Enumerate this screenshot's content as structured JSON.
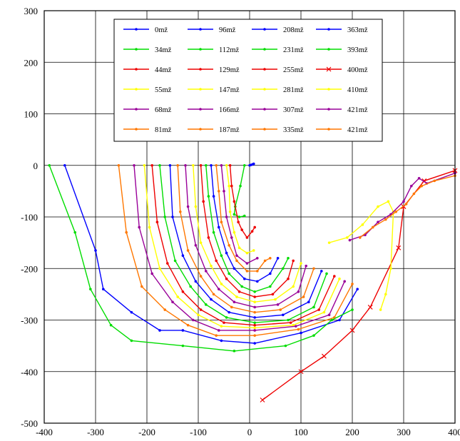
{
  "chart_data": {
    "type": "line",
    "xlim": [
      -400,
      400
    ],
    "ylim": [
      -500,
      300
    ],
    "x_ticks": [
      -400,
      -300,
      -200,
      -100,
      0,
      100,
      200,
      300,
      400
    ],
    "y_ticks": [
      300,
      200,
      100,
      0,
      -100,
      -200,
      -300,
      -400,
      -500
    ],
    "x_tick_labels": [
      "-400",
      "-300",
      "-200",
      "-100",
      "0",
      "100",
      "200",
      "300",
      "400"
    ],
    "y_tick_labels": [
      "300",
      "200",
      "100",
      "0",
      "-100",
      "-200",
      "-300",
      "-400",
      "-500"
    ],
    "grid": true,
    "legend_position": "top-center",
    "legend_columns": 4,
    "series": [
      {
        "name": "0mž",
        "color": "#0000ff",
        "marker": "dot",
        "points": [
          [
            0,
            0
          ],
          [
            3,
            1
          ],
          [
            6,
            2
          ],
          [
            8,
            3
          ]
        ]
      },
      {
        "name": "34mž",
        "color": "#00dd00",
        "marker": "dot",
        "points": [
          [
            -10,
            0
          ],
          [
            -18,
            -40
          ],
          [
            -28,
            -80
          ],
          [
            -30,
            -95
          ],
          [
            -20,
            -100
          ],
          [
            -10,
            -98
          ]
        ]
      },
      {
        "name": "44mž",
        "color": "#ee0000",
        "marker": "dot",
        "points": [
          [
            -38,
            0
          ],
          [
            -35,
            -40
          ],
          [
            -30,
            -70
          ],
          [
            -22,
            -110
          ],
          [
            -15,
            -125
          ],
          [
            -5,
            -140
          ],
          [
            5,
            -128
          ],
          [
            10,
            -120
          ]
        ]
      },
      {
        "name": "55mž",
        "color": "#ffff00",
        "marker": "dot",
        "points": [
          [
            -45,
            0
          ],
          [
            -40,
            -40
          ],
          [
            -38,
            -90
          ],
          [
            -30,
            -130
          ],
          [
            -20,
            -160
          ],
          [
            -5,
            -170
          ],
          [
            8,
            -165
          ]
        ]
      },
      {
        "name": "68mž",
        "color": "#990099",
        "marker": "dot",
        "points": [
          [
            -55,
            0
          ],
          [
            -50,
            -50
          ],
          [
            -45,
            -100
          ],
          [
            -35,
            -140
          ],
          [
            -25,
            -175
          ],
          [
            -5,
            -190
          ],
          [
            15,
            -180
          ]
        ]
      },
      {
        "name": "81mž",
        "color": "#ff7700",
        "marker": "dot",
        "points": [
          [
            -65,
            0
          ],
          [
            -60,
            -50
          ],
          [
            -55,
            -110
          ],
          [
            -40,
            -155
          ],
          [
            -25,
            -185
          ],
          [
            -5,
            -205
          ],
          [
            15,
            -205
          ],
          [
            30,
            -185
          ],
          [
            40,
            -180
          ]
        ]
      },
      {
        "name": "96mž",
        "color": "#0000ff",
        "marker": "dot",
        "points": [
          [
            -75,
            0
          ],
          [
            -70,
            -60
          ],
          [
            -60,
            -120
          ],
          [
            -45,
            -170
          ],
          [
            -30,
            -200
          ],
          [
            -10,
            -220
          ],
          [
            15,
            -225
          ],
          [
            40,
            -210
          ],
          [
            55,
            -180
          ]
        ]
      },
      {
        "name": "112mž",
        "color": "#00dd00",
        "marker": "dot",
        "points": [
          [
            -85,
            0
          ],
          [
            -80,
            -60
          ],
          [
            -70,
            -130
          ],
          [
            -55,
            -175
          ],
          [
            -40,
            -210
          ],
          [
            -15,
            -235
          ],
          [
            10,
            -245
          ],
          [
            40,
            -235
          ],
          [
            65,
            -200
          ],
          [
            75,
            -180
          ]
        ]
      },
      {
        "name": "129mž",
        "color": "#ee0000",
        "marker": "dot",
        "points": [
          [
            -95,
            0
          ],
          [
            -90,
            -70
          ],
          [
            -80,
            -140
          ],
          [
            -65,
            -185
          ],
          [
            -45,
            -220
          ],
          [
            -20,
            -245
          ],
          [
            10,
            -255
          ],
          [
            45,
            -250
          ],
          [
            75,
            -220
          ],
          [
            85,
            -185
          ]
        ]
      },
      {
        "name": "147mž",
        "color": "#ffff00",
        "marker": "dot",
        "points": [
          [
            -110,
            0
          ],
          [
            -105,
            -80
          ],
          [
            -95,
            -150
          ],
          [
            -75,
            -195
          ],
          [
            -55,
            -230
          ],
          [
            -25,
            -255
          ],
          [
            10,
            -265
          ],
          [
            50,
            -260
          ],
          [
            85,
            -235
          ],
          [
            100,
            -190
          ]
        ]
      },
      {
        "name": "166mž",
        "color": "#990099",
        "marker": "dot",
        "points": [
          [
            -125,
            0
          ],
          [
            -120,
            -80
          ],
          [
            -105,
            -155
          ],
          [
            -85,
            -205
          ],
          [
            -60,
            -240
          ],
          [
            -30,
            -265
          ],
          [
            10,
            -275
          ],
          [
            55,
            -270
          ],
          [
            95,
            -245
          ],
          [
            110,
            -195
          ]
        ]
      },
      {
        "name": "187mž",
        "color": "#ff7700",
        "marker": "dot",
        "points": [
          [
            -140,
            0
          ],
          [
            -135,
            -90
          ],
          [
            -120,
            -165
          ],
          [
            -95,
            -215
          ],
          [
            -70,
            -250
          ],
          [
            -35,
            -275
          ],
          [
            10,
            -285
          ],
          [
            60,
            -280
          ],
          [
            105,
            -255
          ],
          [
            125,
            -200
          ]
        ]
      },
      {
        "name": "208mž",
        "color": "#0000ff",
        "marker": "dot",
        "points": [
          [
            -155,
            0
          ],
          [
            -150,
            -100
          ],
          [
            -130,
            -175
          ],
          [
            -105,
            -225
          ],
          [
            -75,
            -260
          ],
          [
            -40,
            -285
          ],
          [
            10,
            -295
          ],
          [
            65,
            -290
          ],
          [
            115,
            -265
          ],
          [
            140,
            -205
          ]
        ]
      },
      {
        "name": "231mž",
        "color": "#00dd00",
        "marker": "dot",
        "points": [
          [
            -175,
            0
          ],
          [
            -165,
            -100
          ],
          [
            -145,
            -185
          ],
          [
            -115,
            -235
          ],
          [
            -85,
            -270
          ],
          [
            -45,
            -295
          ],
          [
            10,
            -305
          ],
          [
            75,
            -300
          ],
          [
            125,
            -275
          ],
          [
            150,
            -210
          ]
        ]
      },
      {
        "name": "255mž",
        "color": "#ee0000",
        "marker": "dot",
        "points": [
          [
            -190,
            0
          ],
          [
            -180,
            -110
          ],
          [
            -160,
            -190
          ],
          [
            -130,
            -245
          ],
          [
            -95,
            -280
          ],
          [
            -50,
            -305
          ],
          [
            10,
            -310
          ],
          [
            80,
            -305
          ],
          [
            135,
            -280
          ],
          [
            165,
            -215
          ]
        ]
      },
      {
        "name": "281mž",
        "color": "#ffff00",
        "marker": "dot",
        "points": [
          [
            -205,
            0
          ],
          [
            -195,
            -120
          ],
          [
            -175,
            -200
          ],
          [
            -140,
            -255
          ],
          [
            -100,
            -290
          ],
          [
            -55,
            -312
          ],
          [
            10,
            -315
          ],
          [
            85,
            -310
          ],
          [
            145,
            -285
          ],
          [
            175,
            -220
          ]
        ]
      },
      {
        "name": "307mž",
        "color": "#990099",
        "marker": "dot",
        "points": [
          [
            -225,
            0
          ],
          [
            -215,
            -120
          ],
          [
            -190,
            -210
          ],
          [
            -150,
            -265
          ],
          [
            -110,
            -300
          ],
          [
            -60,
            -320
          ],
          [
            10,
            -320
          ],
          [
            90,
            -312
          ],
          [
            155,
            -290
          ],
          [
            185,
            -225
          ]
        ]
      },
      {
        "name": "335mž",
        "color": "#ff7700",
        "marker": "dot",
        "points": [
          [
            -255,
            0
          ],
          [
            -240,
            -130
          ],
          [
            -210,
            -235
          ],
          [
            -165,
            -280
          ],
          [
            -120,
            -310
          ],
          [
            -65,
            -330
          ],
          [
            10,
            -330
          ],
          [
            95,
            -318
          ],
          [
            165,
            -295
          ],
          [
            200,
            -230
          ]
        ]
      },
      {
        "name": "363mž",
        "color": "#0000ff",
        "marker": "dot",
        "points": [
          [
            -360,
            0
          ],
          [
            -300,
            -165
          ],
          [
            -285,
            -240
          ],
          [
            -230,
            -285
          ],
          [
            -175,
            -320
          ],
          [
            -130,
            -320
          ],
          [
            -55,
            -340
          ],
          [
            10,
            -345
          ],
          [
            100,
            -325
          ],
          [
            175,
            -300
          ],
          [
            210,
            -240
          ]
        ]
      },
      {
        "name": "393mž",
        "color": "#00dd00",
        "marker": "dot",
        "points": [
          [
            -390,
            0
          ],
          [
            -340,
            -130
          ],
          [
            -310,
            -240
          ],
          [
            -270,
            -310
          ],
          [
            -230,
            -340
          ],
          [
            -130,
            -350
          ],
          [
            -30,
            -360
          ],
          [
            70,
            -350
          ],
          [
            125,
            -330
          ],
          [
            160,
            -300
          ],
          [
            200,
            -280
          ]
        ]
      },
      {
        "name": "400mž",
        "color": "#ee0000",
        "marker": "x",
        "points": [
          [
            25,
            -455
          ],
          [
            100,
            -400
          ],
          [
            145,
            -370
          ],
          [
            200,
            -320
          ],
          [
            235,
            -275
          ],
          [
            290,
            -160
          ],
          [
            300,
            -80
          ],
          [
            340,
            -30
          ],
          [
            400,
            -10
          ]
        ]
      },
      {
        "name": "410mž",
        "color": "#ffff00",
        "marker": "dot",
        "points": [
          [
            155,
            -150
          ],
          [
            190,
            -140
          ],
          [
            220,
            -115
          ],
          [
            250,
            -80
          ],
          [
            270,
            -70
          ],
          [
            280,
            -90
          ],
          [
            275,
            -200
          ],
          [
            265,
            -250
          ],
          [
            255,
            -280
          ]
        ]
      },
      {
        "name": "421mž",
        "color": "#990099",
        "marker": "dot",
        "points": [
          [
            195,
            -145
          ],
          [
            225,
            -135
          ],
          [
            250,
            -110
          ],
          [
            275,
            -95
          ],
          [
            300,
            -70
          ],
          [
            315,
            -40
          ],
          [
            330,
            -25
          ],
          [
            345,
            -35
          ],
          [
            400,
            -15
          ]
        ]
      },
      {
        "name": "421mž",
        "color": "#ff7700",
        "marker": "dot",
        "points": [
          [
            215,
            -140
          ],
          [
            240,
            -120
          ],
          [
            265,
            -105
          ],
          [
            285,
            -90
          ],
          [
            305,
            -75
          ],
          [
            320,
            -55
          ],
          [
            335,
            -40
          ],
          [
            360,
            -30
          ],
          [
            400,
            -20
          ]
        ]
      }
    ]
  }
}
